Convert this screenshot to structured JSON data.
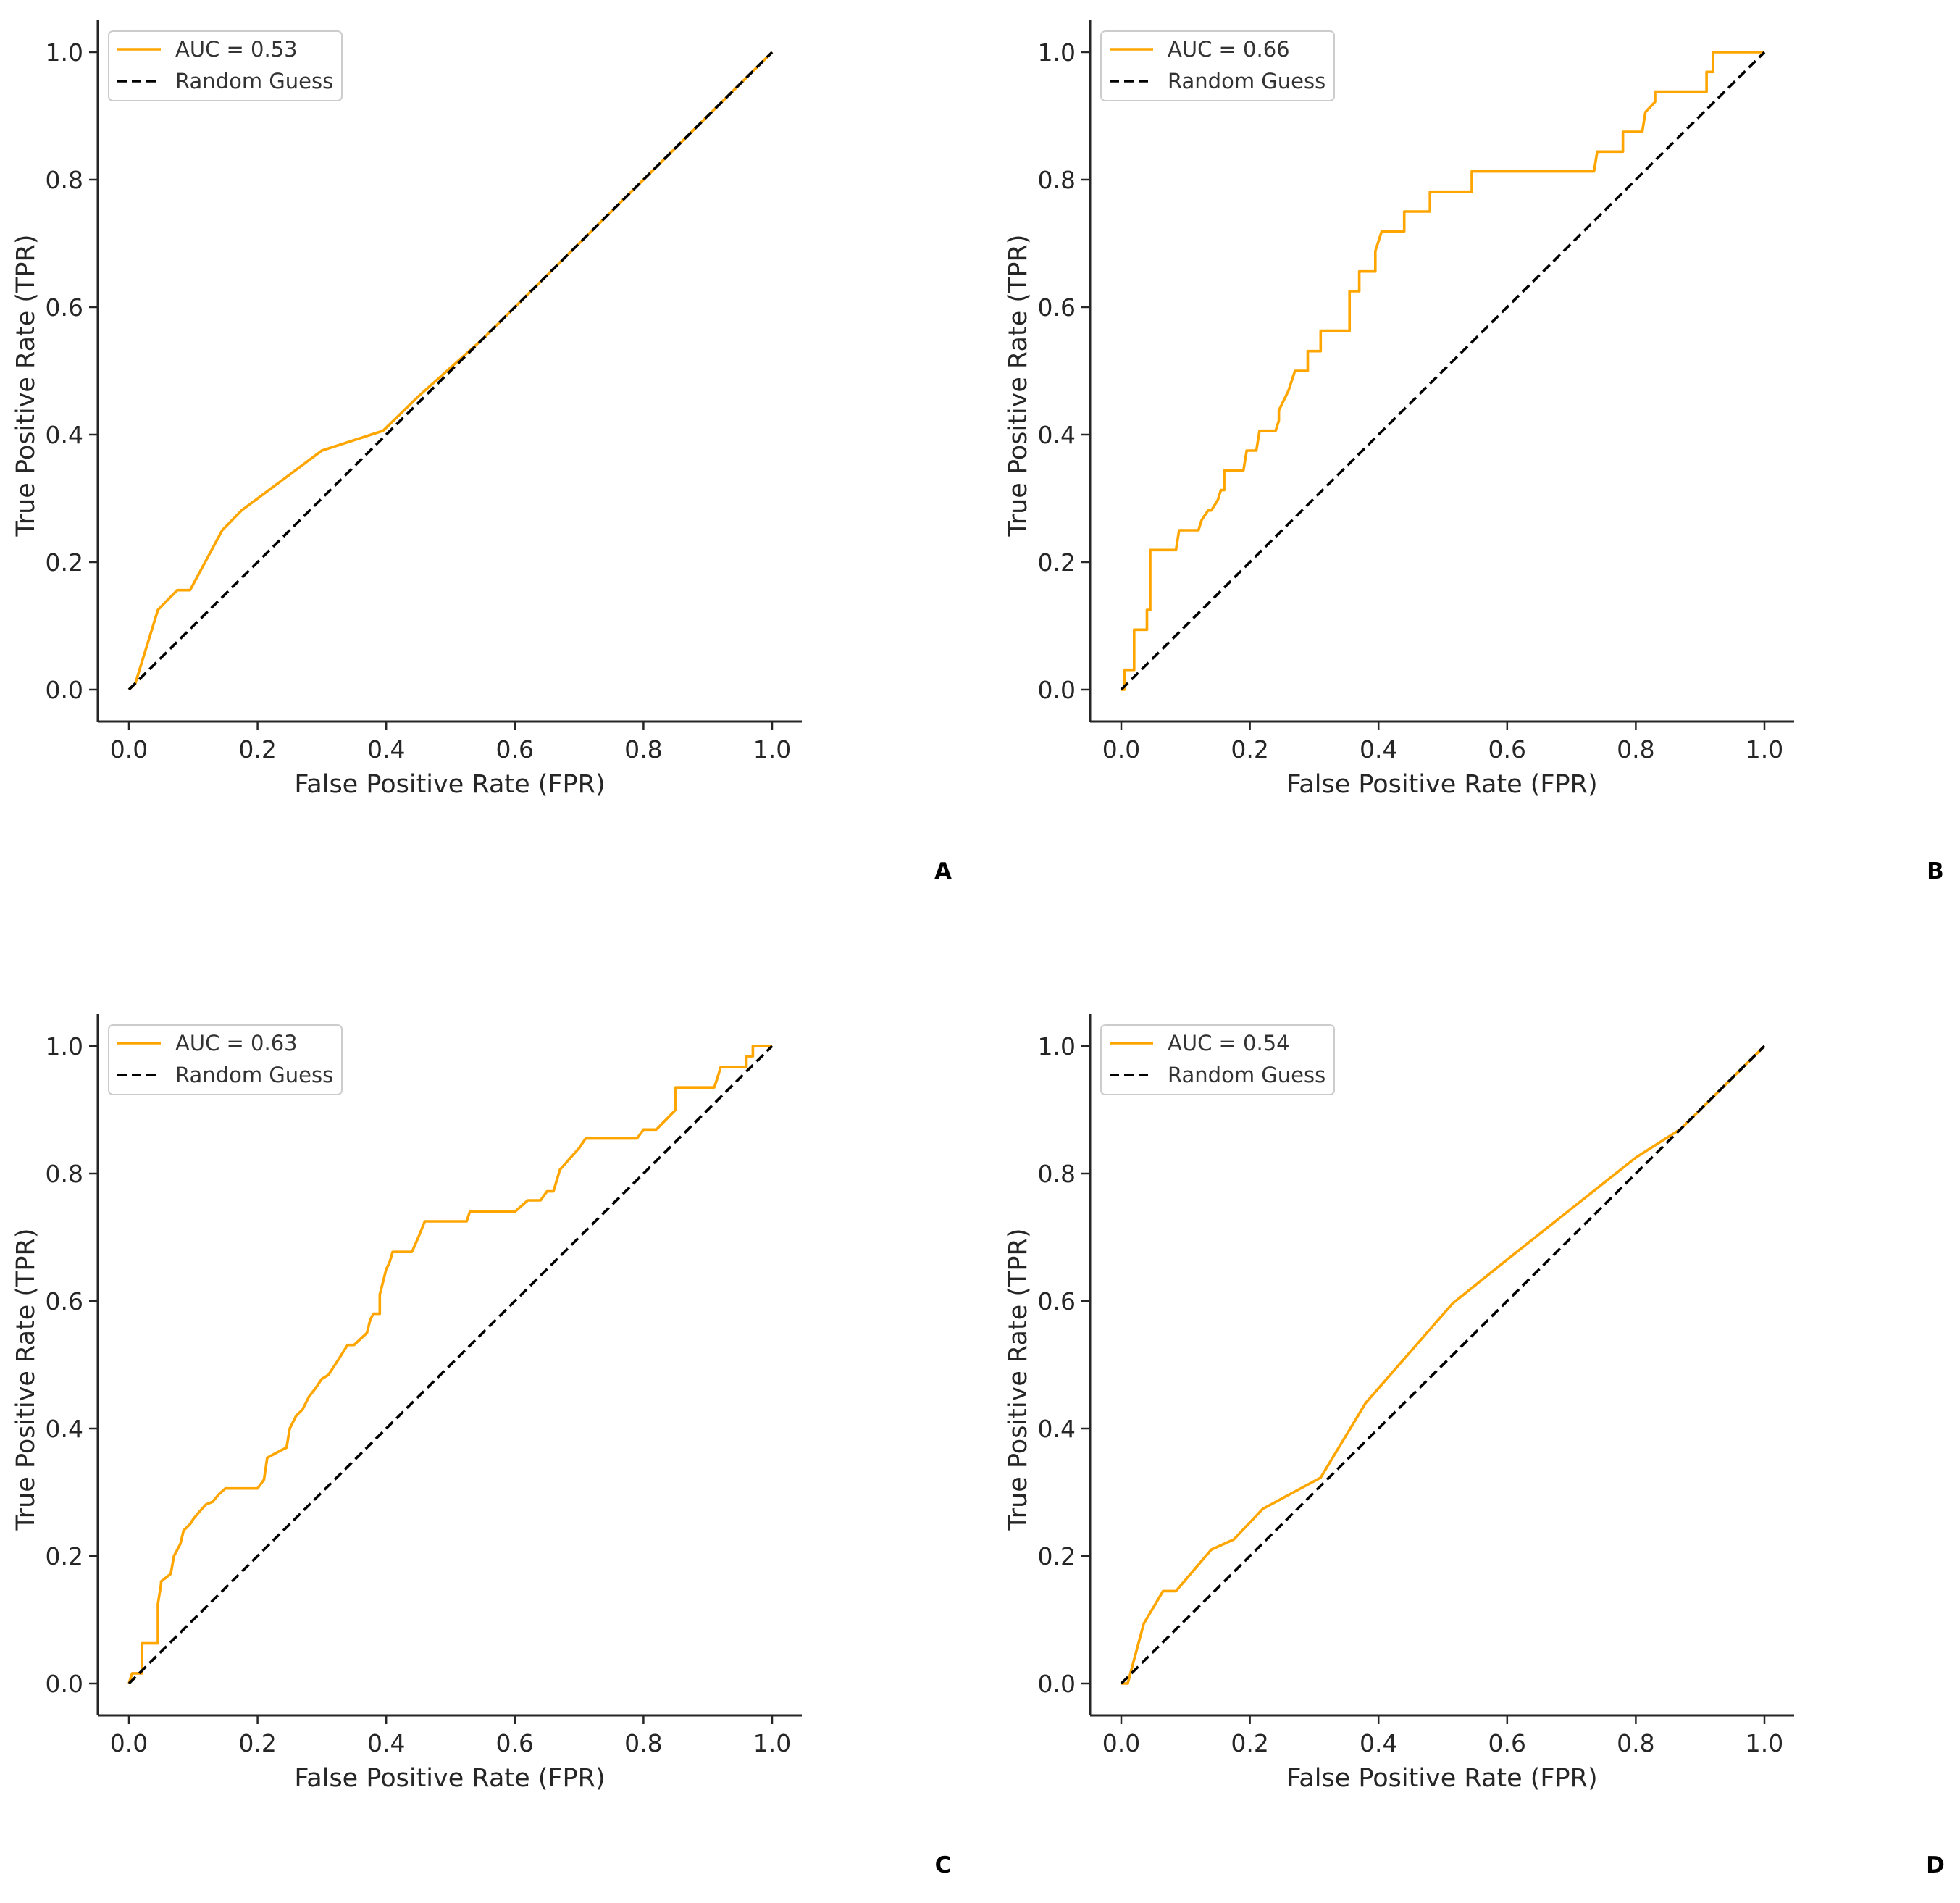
{
  "colors": {
    "roc": "#FFA500",
    "random": "#000000",
    "axis": "#262626"
  },
  "chart_data": [
    {
      "panel": "A",
      "type": "line",
      "xlabel": "False Positive Rate (FPR)",
      "ylabel": "True Positive Rate (TPR)",
      "xlim": [
        -0.05,
        1.05
      ],
      "ylim": [
        -0.05,
        1.05
      ],
      "xticks": [
        "0.0",
        "0.2",
        "0.4",
        "0.6",
        "0.8",
        "1.0"
      ],
      "yticks": [
        "0.0",
        "0.2",
        "0.4",
        "0.6",
        "0.8",
        "1.0"
      ],
      "legend_position": "upper-left",
      "series": [
        {
          "name": "AUC = 0.53",
          "style": "solid",
          "x": [
            0,
            0.01,
            0.045,
            0.075,
            0.095,
            0.145,
            0.175,
            0.3,
            0.395,
            0.45,
            0.55,
            0.7,
            0.85,
            1.0
          ],
          "y": [
            0,
            0.01,
            0.125,
            0.156,
            0.156,
            0.25,
            0.281,
            0.375,
            0.406,
            0.46,
            0.55,
            0.7,
            0.85,
            1.0
          ]
        },
        {
          "name": "Random Guess",
          "style": "dashed",
          "x": [
            0,
            1
          ],
          "y": [
            0,
            1
          ]
        }
      ]
    },
    {
      "panel": "B",
      "type": "line",
      "xlabel": "False Positive Rate (FPR)",
      "ylabel": "True Positive Rate (TPR)",
      "xlim": [
        -0.05,
        1.05
      ],
      "ylim": [
        -0.05,
        1.05
      ],
      "xticks": [
        "0.0",
        "0.2",
        "0.4",
        "0.6",
        "0.8",
        "1.0"
      ],
      "yticks": [
        "0.0",
        "0.2",
        "0.4",
        "0.6",
        "0.8",
        "1.0"
      ],
      "legend_position": "upper-left",
      "series": [
        {
          "name": "AUC = 0.66",
          "style": "solid",
          "x": [
            0,
            0.005,
            0.005,
            0.02,
            0.02,
            0.04,
            0.04,
            0.045,
            0.045,
            0.085,
            0.09,
            0.12,
            0.125,
            0.135,
            0.14,
            0.15,
            0.155,
            0.16,
            0.16,
            0.19,
            0.195,
            0.21,
            0.215,
            0.24,
            0.245,
            0.245,
            0.26,
            0.27,
            0.29,
            0.29,
            0.31,
            0.31,
            0.355,
            0.355,
            0.37,
            0.37,
            0.395,
            0.395,
            0.405,
            0.41,
            0.425,
            0.44,
            0.44,
            0.48,
            0.48,
            0.545,
            0.545,
            0.735,
            0.74,
            0.78,
            0.78,
            0.81,
            0.81,
            0.815,
            0.83,
            0.83,
            0.855,
            0.86,
            0.91,
            0.91,
            0.92,
            0.92,
            1.0
          ],
          "y": [
            0,
            0.0,
            0.031,
            0.031,
            0.094,
            0.094,
            0.125,
            0.125,
            0.219,
            0.219,
            0.25,
            0.25,
            0.266,
            0.281,
            0.281,
            0.297,
            0.313,
            0.313,
            0.344,
            0.344,
            0.375,
            0.375,
            0.406,
            0.406,
            0.422,
            0.438,
            0.469,
            0.5,
            0.5,
            0.531,
            0.531,
            0.563,
            0.563,
            0.625,
            0.625,
            0.656,
            0.656,
            0.688,
            0.719,
            0.719,
            0.719,
            0.719,
            0.75,
            0.75,
            0.781,
            0.781,
            0.813,
            0.813,
            0.844,
            0.844,
            0.875,
            0.875,
            0.875,
            0.906,
            0.922,
            0.938,
            0.938,
            0.938,
            0.938,
            0.969,
            0.969,
            1.0,
            1.0
          ]
        },
        {
          "name": "Random Guess",
          "style": "dashed",
          "x": [
            0,
            1
          ],
          "y": [
            0,
            1
          ]
        }
      ]
    },
    {
      "panel": "C",
      "type": "line",
      "xlabel": "False Positive Rate (FPR)",
      "ylabel": "True Positive Rate (TPR)",
      "xlim": [
        -0.05,
        1.05
      ],
      "ylim": [
        -0.05,
        1.05
      ],
      "xticks": [
        "0.0",
        "0.2",
        "0.4",
        "0.6",
        "0.8",
        "1.0"
      ],
      "yticks": [
        "0.0",
        "0.2",
        "0.4",
        "0.6",
        "0.8",
        "1.0"
      ],
      "legend_position": "upper-left",
      "series": [
        {
          "name": "AUC = 0.63",
          "style": "solid",
          "x": [
            0,
            0.005,
            0.02,
            0.02,
            0.045,
            0.045,
            0.05,
            0.05,
            0.065,
            0.07,
            0.08,
            0.085,
            0.095,
            0.1,
            0.11,
            0.12,
            0.13,
            0.14,
            0.15,
            0.2,
            0.21,
            0.215,
            0.235,
            0.245,
            0.25,
            0.26,
            0.27,
            0.28,
            0.29,
            0.3,
            0.31,
            0.325,
            0.34,
            0.35,
            0.37,
            0.375,
            0.38,
            0.39,
            0.39,
            0.395,
            0.4,
            0.405,
            0.41,
            0.415,
            0.42,
            0.44,
            0.45,
            0.46,
            0.525,
            0.53,
            0.6,
            0.62,
            0.64,
            0.65,
            0.66,
            0.67,
            0.7,
            0.71,
            0.79,
            0.8,
            0.82,
            0.85,
            0.85,
            0.91,
            0.915,
            0.92,
            0.935,
            0.96,
            0.96,
            0.97,
            0.97,
            1.0
          ],
          "y": [
            0,
            0.016,
            0.016,
            0.063,
            0.063,
            0.125,
            0.156,
            0.16,
            0.172,
            0.2,
            0.219,
            0.24,
            0.25,
            0.258,
            0.27,
            0.281,
            0.285,
            0.297,
            0.306,
            0.306,
            0.32,
            0.354,
            0.365,
            0.37,
            0.4,
            0.42,
            0.43,
            0.45,
            0.463,
            0.478,
            0.484,
            0.507,
            0.531,
            0.531,
            0.55,
            0.57,
            0.58,
            0.58,
            0.61,
            0.63,
            0.65,
            0.66,
            0.677,
            0.677,
            0.677,
            0.677,
            0.7,
            0.725,
            0.725,
            0.74,
            0.74,
            0.758,
            0.758,
            0.772,
            0.772,
            0.806,
            0.84,
            0.855,
            0.855,
            0.869,
            0.869,
            0.9,
            0.935,
            0.935,
            0.95,
            0.967,
            0.967,
            0.967,
            0.984,
            0.984,
            1.0,
            1.0
          ]
        },
        {
          "name": "Random Guess",
          "style": "dashed",
          "x": [
            0,
            1
          ],
          "y": [
            0,
            1
          ]
        }
      ]
    },
    {
      "panel": "D",
      "type": "line",
      "xlabel": "False Positive Rate (FPR)",
      "ylabel": "True Positive Rate (TPR)",
      "xlim": [
        -0.05,
        1.05
      ],
      "ylim": [
        -0.05,
        1.05
      ],
      "xticks": [
        "0.0",
        "0.2",
        "0.4",
        "0.6",
        "0.8",
        "1.0"
      ],
      "yticks": [
        "0.0",
        "0.2",
        "0.4",
        "0.6",
        "0.8",
        "1.0"
      ],
      "legend_position": "upper-left",
      "series": [
        {
          "name": "AUC = 0.54",
          "style": "solid",
          "x": [
            0,
            0.01,
            0.035,
            0.065,
            0.085,
            0.14,
            0.175,
            0.22,
            0.31,
            0.38,
            0.515,
            0.6,
            0.7,
            0.8,
            0.87,
            1.0
          ],
          "y": [
            0,
            0.0,
            0.094,
            0.145,
            0.145,
            0.21,
            0.226,
            0.274,
            0.323,
            0.44,
            0.596,
            0.665,
            0.745,
            0.825,
            0.87,
            1.0
          ]
        },
        {
          "name": "Random Guess",
          "style": "dashed",
          "x": [
            0,
            1
          ],
          "y": [
            0,
            1
          ]
        }
      ]
    }
  ]
}
